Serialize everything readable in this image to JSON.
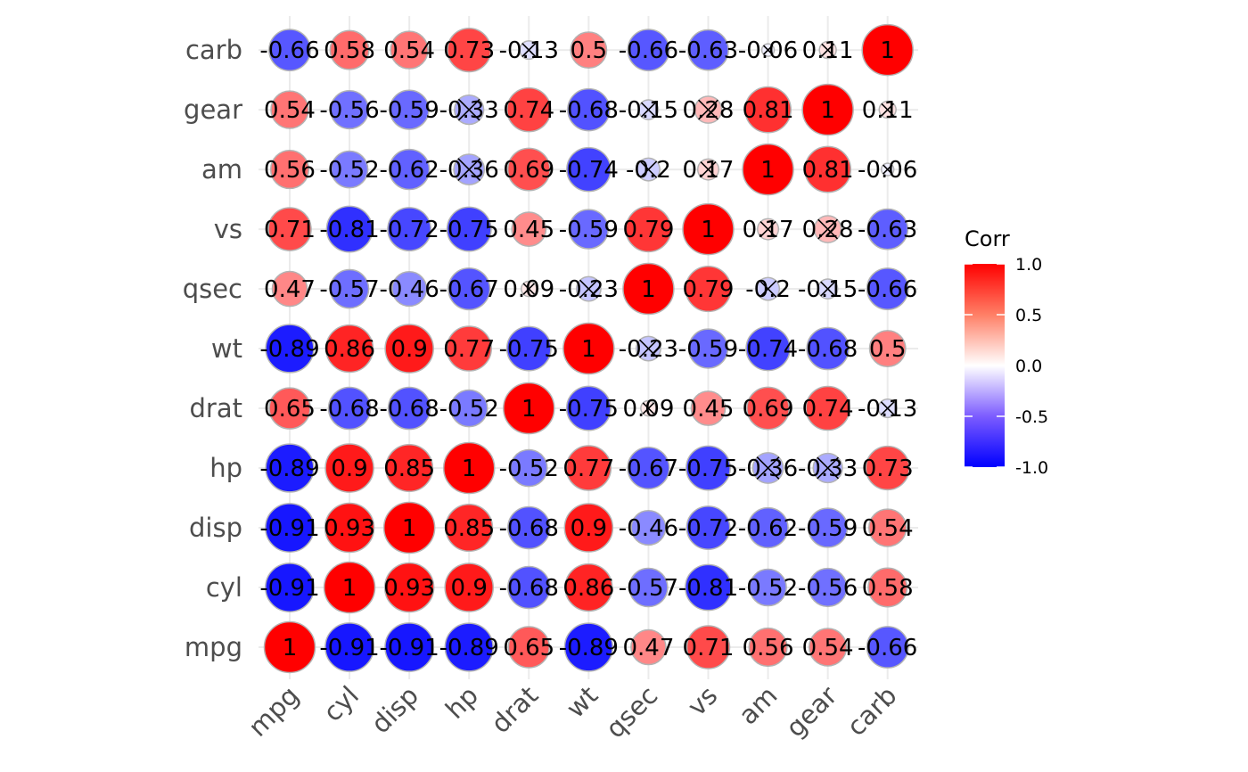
{
  "chart_data": {
    "type": "heatmap",
    "marker": "circle",
    "variables": [
      "mpg",
      "cyl",
      "disp",
      "hp",
      "drat",
      "wt",
      "qsec",
      "vs",
      "am",
      "gear",
      "carb"
    ],
    "labels_display": [
      [
        "1",
        "-0.91",
        "-0.91",
        "-0.89",
        "0.65",
        "-0.89",
        "0.47",
        "0.71",
        "0.56",
        "0.54",
        "-0.66"
      ],
      [
        "-0.91",
        "1",
        "0.93",
        "0.9",
        "-0.68",
        "0.86",
        "-0.57",
        "-0.81",
        "-0.52",
        "-0.56",
        "0.58"
      ],
      [
        "-0.91",
        "0.93",
        "1",
        "0.85",
        "-0.68",
        "0.9",
        "-0.46",
        "-0.72",
        "-0.62",
        "-0.59",
        "0.54"
      ],
      [
        "-0.89",
        "0.9",
        "0.85",
        "1",
        "-0.52",
        "0.77",
        "-0.67",
        "-0.75",
        "-0.36",
        "-0.33",
        "0.73"
      ],
      [
        "0.65",
        "-0.68",
        "-0.68",
        "-0.52",
        "1",
        "-0.75",
        "0.09",
        "0.45",
        "0.69",
        "0.74",
        "-0.13"
      ],
      [
        "-0.89",
        "0.86",
        "0.9",
        "0.77",
        "-0.75",
        "1",
        "-0.23",
        "-0.59",
        "-0.74",
        "-0.68",
        "0.5"
      ],
      [
        "0.47",
        "-0.57",
        "-0.46",
        "-0.67",
        "0.09",
        "-0.23",
        "1",
        "0.79",
        "-0.2",
        "-0.15",
        "-0.66"
      ],
      [
        "0.71",
        "-0.81",
        "-0.72",
        "-0.75",
        "0.45",
        "-0.59",
        "0.79",
        "1",
        "0.17",
        "0.28",
        "-0.63"
      ],
      [
        "0.56",
        "-0.52",
        "-0.62",
        "-0.36",
        "0.69",
        "-0.74",
        "-0.2",
        "0.17",
        "1",
        "0.81",
        "-0.06"
      ],
      [
        "0.54",
        "-0.56",
        "-0.59",
        "-0.33",
        "0.74",
        "-0.68",
        "-0.15",
        "0.28",
        "0.81",
        "1",
        "0.11"
      ],
      [
        "-0.66",
        "0.58",
        "0.54",
        "0.73",
        "-0.13",
        "0.5",
        "-0.66",
        "-0.63",
        "-0.06",
        "0.11",
        "1"
      ]
    ],
    "insignificant": [
      [
        0,
        0,
        0,
        0,
        0,
        0,
        0,
        0,
        0,
        0,
        0
      ],
      [
        0,
        0,
        0,
        0,
        0,
        0,
        0,
        0,
        0,
        0,
        0
      ],
      [
        0,
        0,
        0,
        0,
        0,
        0,
        0,
        0,
        0,
        0,
        0
      ],
      [
        0,
        0,
        0,
        0,
        0,
        0,
        0,
        0,
        1,
        1,
        0
      ],
      [
        0,
        0,
        0,
        0,
        0,
        0,
        1,
        0,
        0,
        0,
        1
      ],
      [
        0,
        0,
        0,
        0,
        0,
        0,
        1,
        0,
        0,
        0,
        0
      ],
      [
        0,
        0,
        0,
        0,
        1,
        1,
        0,
        0,
        1,
        1,
        0
      ],
      [
        0,
        0,
        0,
        0,
        0,
        0,
        0,
        0,
        1,
        1,
        0
      ],
      [
        0,
        0,
        0,
        1,
        0,
        0,
        1,
        1,
        0,
        0,
        1
      ],
      [
        0,
        0,
        0,
        1,
        0,
        0,
        1,
        1,
        0,
        0,
        1
      ],
      [
        0,
        0,
        0,
        0,
        1,
        0,
        0,
        0,
        1,
        1,
        0
      ]
    ],
    "fill_scale": {
      "low": "#0000ff",
      "mid": "#ffffff",
      "high": "#ff0000",
      "limits": [
        -1,
        1
      ]
    },
    "legend": {
      "title": "Corr",
      "ticks": [
        "1.0",
        "0.5",
        "0.0",
        "-0.5",
        "-1.0"
      ],
      "tick_values": [
        1.0,
        0.5,
        0.0,
        -0.5,
        -1.0
      ],
      "placement": "right"
    },
    "grid": true
  }
}
